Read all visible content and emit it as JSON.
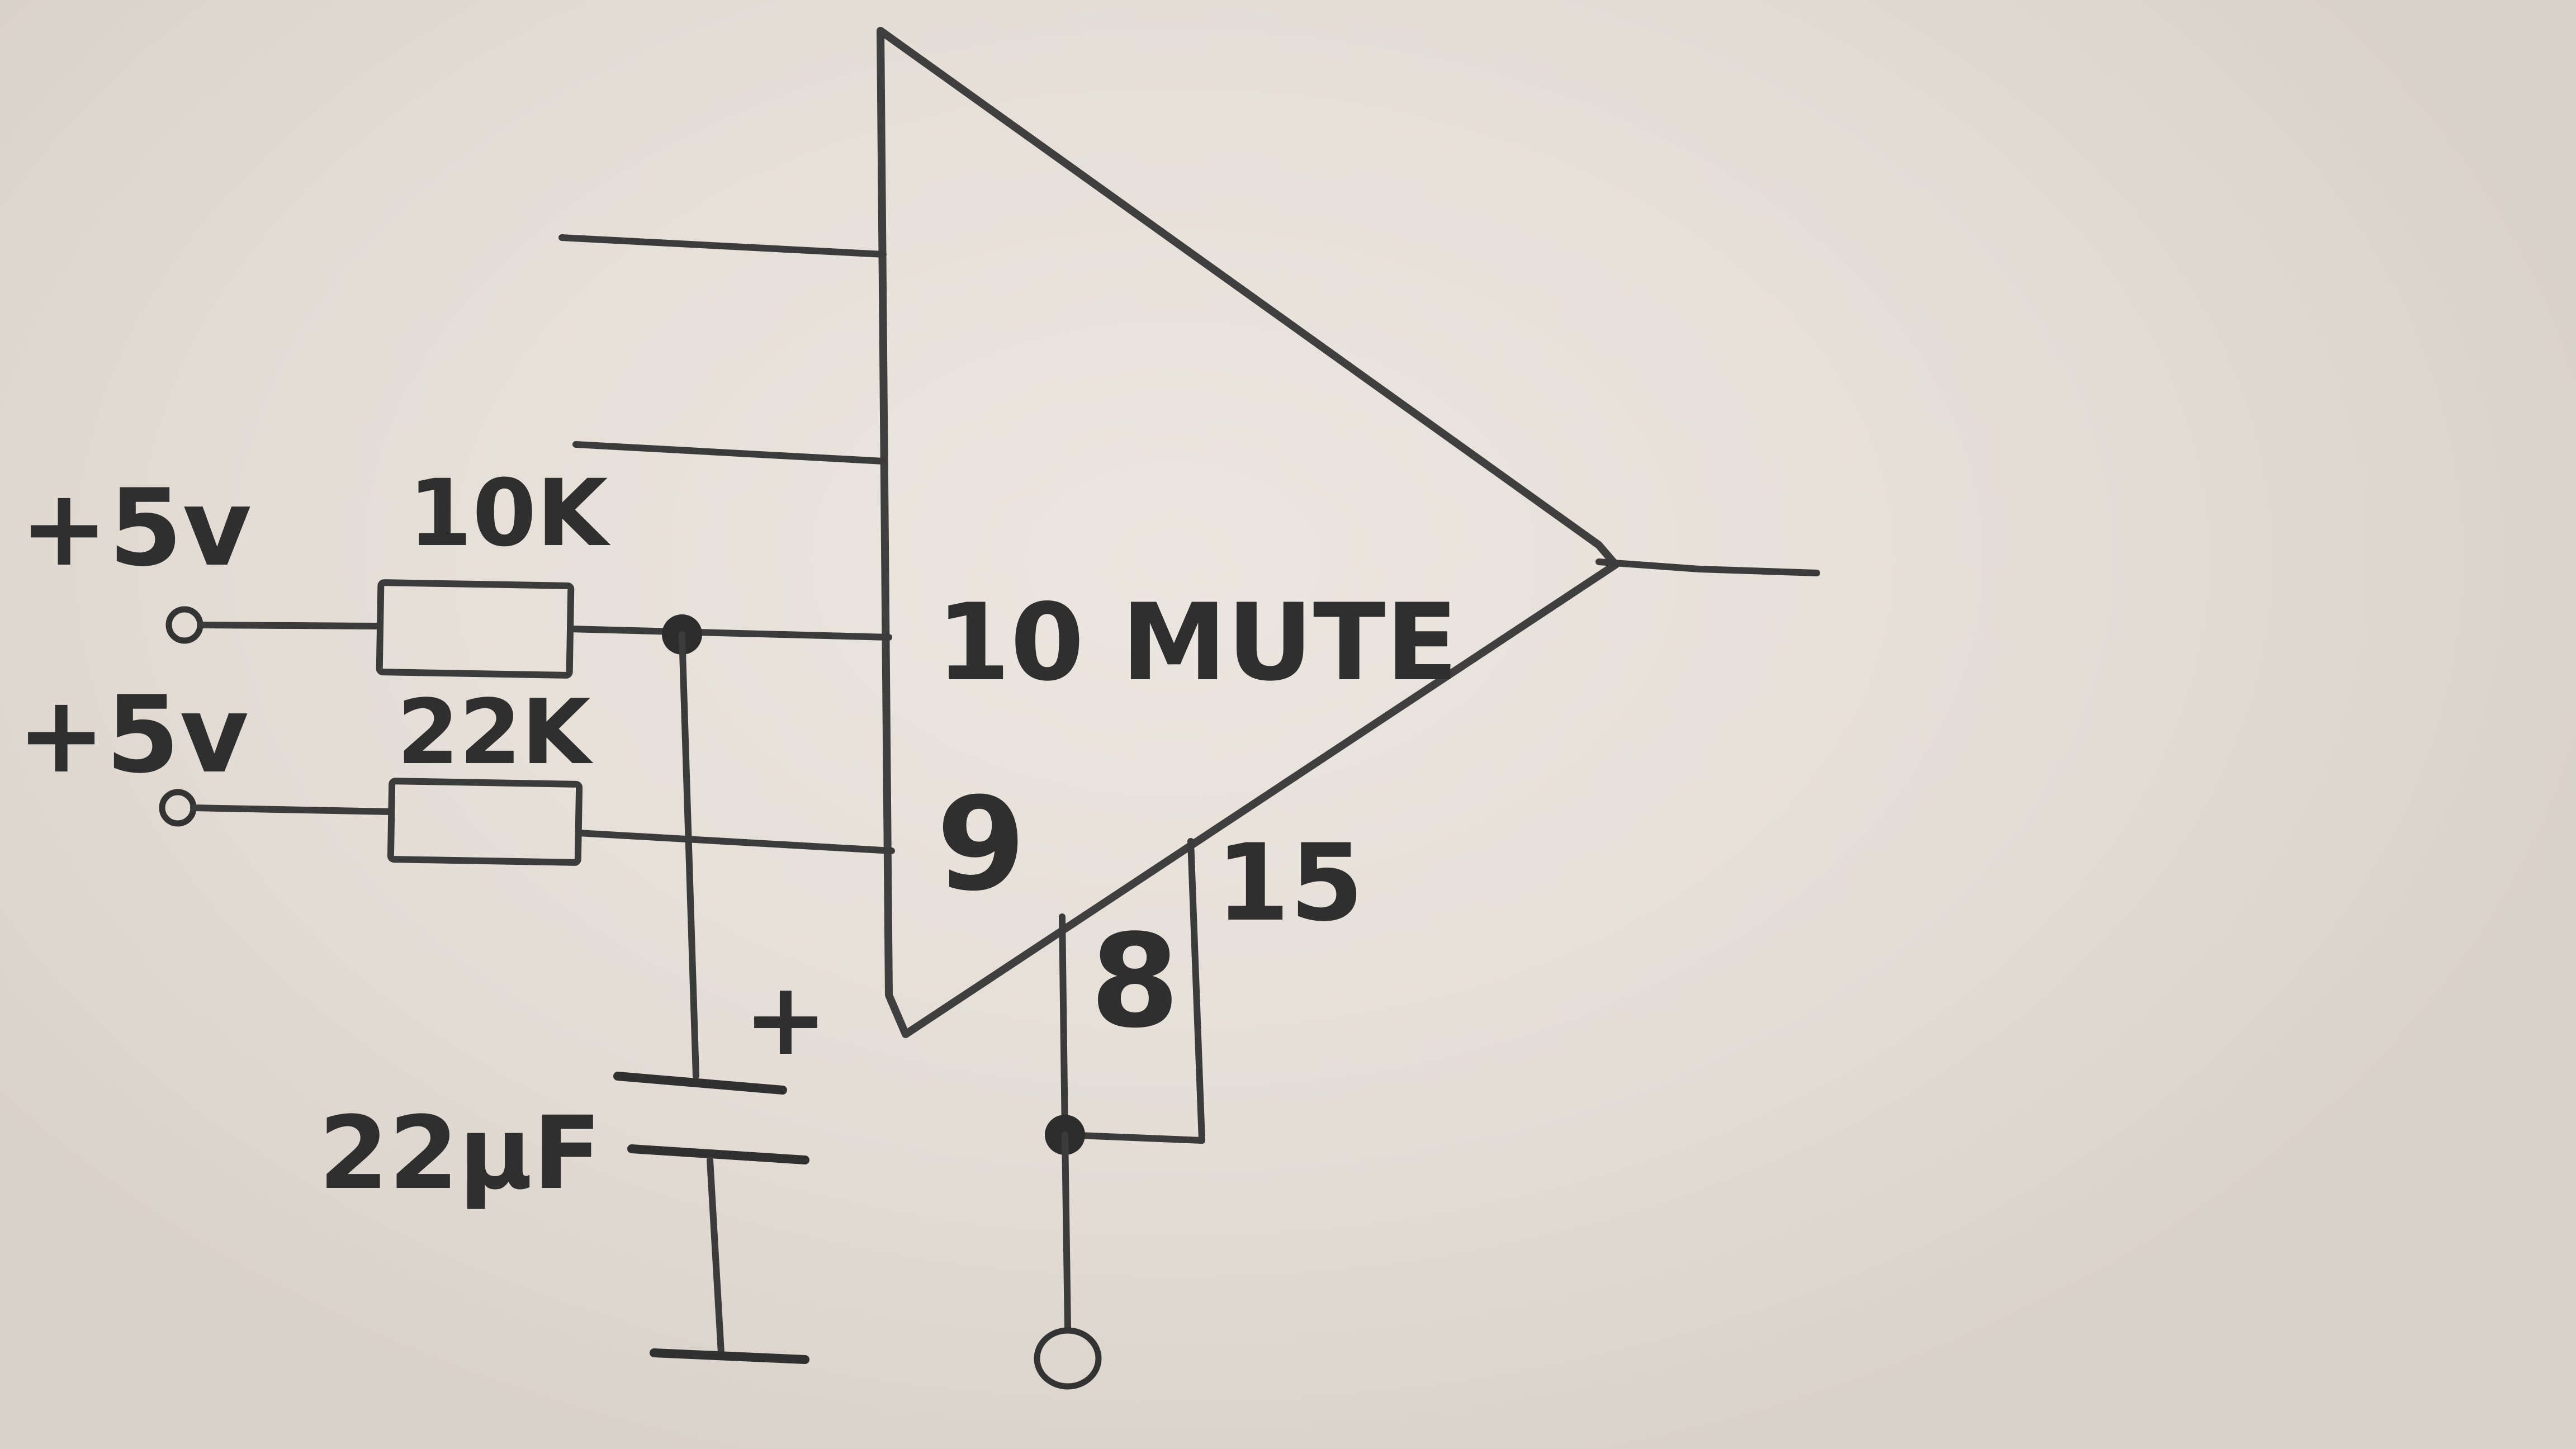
{
  "diagram": {
    "amplifier": {
      "mute_pin_label": "10 MUTE",
      "pin9_label": "9",
      "pin8_label": "8",
      "pin15_label": "15"
    },
    "supply_top": {
      "label": "+5v",
      "resistor_label": "10K"
    },
    "supply_bottom": {
      "label": "+5v",
      "resistor_label": "22K"
    },
    "capacitor": {
      "value_label": "22μF",
      "polarity_label": "+"
    },
    "colors": {
      "paper": "#e7e1da",
      "pencil": "#3b3b3b"
    }
  }
}
